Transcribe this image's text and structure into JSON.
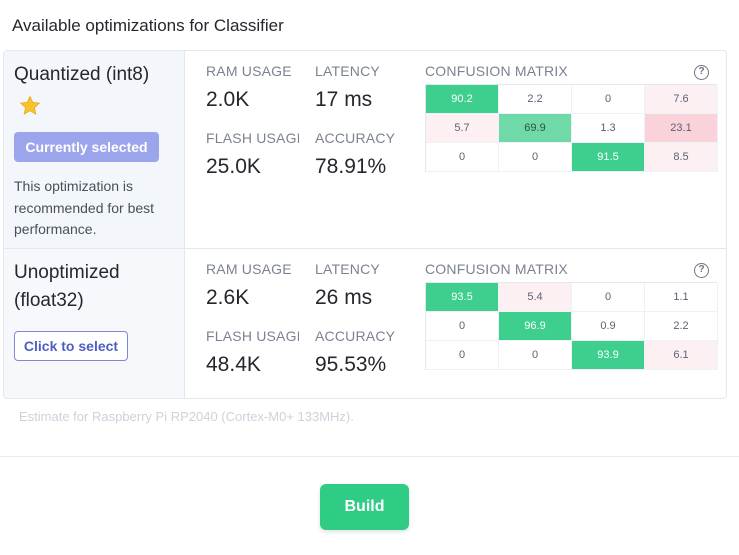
{
  "page": {
    "title": "Available optimizations for Classifier"
  },
  "optimizations": [
    {
      "name": "Quantized (int8)",
      "icon": "star-icon",
      "button_label": "Currently selected",
      "recommendation": "This optimization is recommended for best performance.",
      "labels": {
        "ram": "RAM USAGE",
        "latency": "LATENCY",
        "flash": "FLASH USAGE",
        "accuracy": "ACCURACY",
        "confusion": "CONFUSION MATRIX"
      },
      "ram": "2.0K",
      "latency": "17 ms",
      "flash": "25.0K",
      "accuracy": "78.91%",
      "matrix": [
        [
          "90.2",
          "2.2",
          "0",
          "7.6"
        ],
        [
          "5.7",
          "69.9",
          "1.3",
          "23.1"
        ],
        [
          "0",
          "0",
          "91.5",
          "8.5"
        ]
      ]
    },
    {
      "name": "Unoptimized (float32)",
      "button_label": "Click to select",
      "labels": {
        "ram": "RAM USAGE",
        "latency": "LATENCY",
        "flash": "FLASH USAGE",
        "accuracy": "ACCURACY",
        "confusion": "CONFUSION MATRIX"
      },
      "ram": "2.6K",
      "latency": "26 ms",
      "flash": "48.4K",
      "accuracy": "95.53%",
      "matrix": [
        [
          "93.5",
          "5.4",
          "0",
          "1.1"
        ],
        [
          "0",
          "96.9",
          "0.9",
          "2.2"
        ],
        [
          "0",
          "0",
          "93.9",
          "6.1"
        ]
      ]
    }
  ],
  "help_glyph": "?",
  "estimate": "Estimate for Raspberry Pi RP2040 (Cortex-M0+ 133MHz).",
  "build_label": "Build",
  "colors": {
    "accent": "#2fcc85",
    "selected": "#9ba5ec",
    "link": "#4f5ec4"
  }
}
